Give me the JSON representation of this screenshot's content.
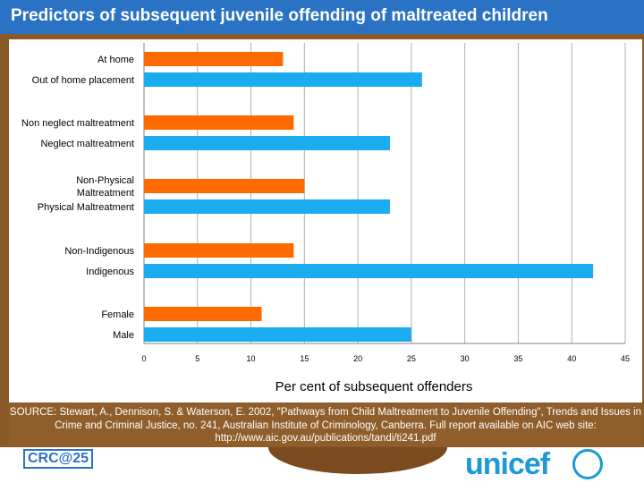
{
  "slide": {
    "title": "Predictors of subsequent juvenile offending of maltreated children",
    "source_text": "SOURCE: Stewart, A., Dennison, S. & Waterson, E. 2002, \"Pathways from Child Maltreatment to Juvenile Offending\", Trends and Issues in Crime and Criminal Justice, no. 241, Australian Institute of Criminology, Canberra. Full report available on AIC web site: http://www.aic.gov.au/publications/tandi/ti241.pdf",
    "crc_logo_text": "CRC@25",
    "unicef_logo_text": "unicef"
  },
  "colors": {
    "title_bg": "#2a72c4",
    "orange_bar": "#ff6a00",
    "blue_bar": "#1aabf0",
    "frame": "#8a5a28"
  },
  "chart_data": {
    "type": "bar",
    "orientation": "horizontal",
    "categories": [
      "At home",
      "Out of home placement",
      "Non neglect maltreatment",
      "Neglect maltreatment",
      "Non-Physical Maltreatment",
      "Physical Maltreatment",
      "Non-Indigenous",
      "Indigenous",
      "Female",
      "Male"
    ],
    "values": [
      13,
      26,
      14,
      23,
      15,
      23,
      14,
      42,
      11,
      25
    ],
    "bar_colors": [
      "orange",
      "blue",
      "orange",
      "blue",
      "orange",
      "blue",
      "orange",
      "blue",
      "orange",
      "blue"
    ],
    "xlim": [
      0,
      45
    ],
    "xticks": [
      0,
      5,
      10,
      15,
      20,
      25,
      30,
      35,
      40,
      45
    ],
    "xlabel": "Per cent of subsequent offenders",
    "ylabel": "",
    "grid": "vertical"
  }
}
